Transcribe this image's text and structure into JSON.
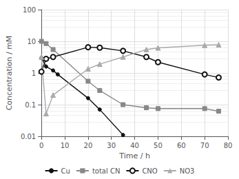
{
  "chart_data": {
    "type": "line",
    "xlabel": "Time / h",
    "ylabel": "Concentration / mM",
    "log": "y",
    "grid": true,
    "legend": "bottom",
    "xlim": [
      0,
      80
    ],
    "ylim": [
      0.01,
      100
    ],
    "xticks": [
      0,
      10,
      20,
      30,
      40,
      50,
      60,
      70,
      80
    ],
    "yticks": [
      0.01,
      0.1,
      1,
      10,
      100
    ],
    "series": [
      {
        "name": "Cu",
        "color": "#111111",
        "marker": "circle",
        "x": [
          0,
          2,
          5,
          7,
          20,
          25,
          35
        ],
        "values": [
          3.0,
          1.6,
          1.2,
          0.9,
          0.16,
          0.07,
          0.011
        ]
      },
      {
        "name": "total CN",
        "color": "#888888",
        "marker": "square",
        "x": [
          0,
          2,
          5,
          20,
          25,
          35,
          45,
          50,
          70,
          76
        ],
        "values": [
          10.0,
          8.5,
          5.5,
          0.55,
          0.28,
          0.1,
          0.08,
          0.075,
          0.075,
          0.062
        ]
      },
      {
        "name": "CNO",
        "color": "#111111",
        "marker": "open circle",
        "x": [
          0,
          2,
          5,
          20,
          25,
          35,
          45,
          50,
          70,
          76
        ],
        "values": [
          1.1,
          2.8,
          3.2,
          6.5,
          6.3,
          5.0,
          3.2,
          2.2,
          0.9,
          0.72
        ]
      },
      {
        "name": "NO3",
        "color": "#aaaaaa",
        "marker": "triangle",
        "x": [
          0,
          2,
          5,
          20,
          25,
          35,
          45,
          50,
          70,
          76
        ],
        "values": [
          3.2,
          0.052,
          0.2,
          1.35,
          1.9,
          3.2,
          5.5,
          6.2,
          7.5,
          7.8
        ]
      }
    ]
  }
}
